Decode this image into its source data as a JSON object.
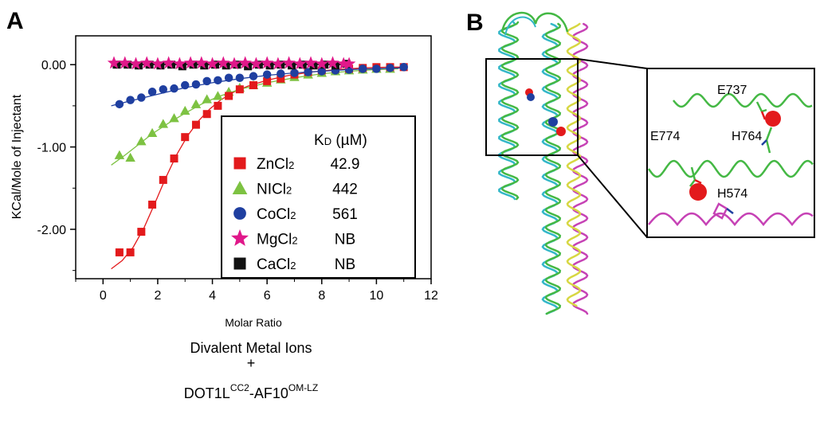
{
  "panel_a": {
    "letter": "A"
  },
  "panel_b": {
    "letter": "B",
    "residues": [
      "E737",
      "E774",
      "H764",
      "H574"
    ],
    "ribbon_colors": {
      "dot1l_a": "#44b844",
      "dot1l_b": "#33b7c8",
      "af10": "#c642b5",
      "helper": "#d7d742"
    },
    "ion_color": "#e31a1c",
    "alt_ion_color": "#1f3fa0"
  },
  "legend": {
    "header_prefix": "K",
    "header_sub": "D",
    "header_suffix": " (µM)",
    "entries": [
      {
        "base": "ZnCl",
        "sub": "2",
        "kd": "42.9",
        "marker": "square",
        "color": "#e31a1c"
      },
      {
        "base": "NICl",
        "sub": "2",
        "kd": "442",
        "marker": "triangle",
        "color": "#7dc242"
      },
      {
        "base": "CoCl",
        "sub": "2",
        "kd": "561",
        "marker": "circle",
        "color": "#1f3fa0"
      },
      {
        "base": "MgCl",
        "sub": "2",
        "kd": "NB",
        "marker": "star",
        "color": "#e0188a"
      },
      {
        "base": "CaCl",
        "sub": "2",
        "kd": "NB",
        "marker": "square",
        "color": "#111111"
      }
    ]
  },
  "caption": {
    "line1": "Divalent Metal Ions",
    "line2": "+",
    "part1": "DOT1L",
    "sup1": "CC2",
    "part2": "-AF10",
    "sup2": "OM-LZ"
  },
  "chart_data": {
    "type": "scatter",
    "xlabel": "Molar Ratio",
    "ylabel": "KCal/Mole of Injectant",
    "xlim": [
      -1,
      12
    ],
    "ylim": [
      -2.6,
      0.35
    ],
    "xticks": [
      0,
      2,
      4,
      6,
      8,
      10,
      12
    ],
    "yticks": [
      0.0,
      -1.0,
      -2.0
    ],
    "ytick_labels": [
      "0.00",
      "-1.00",
      "-2.00"
    ],
    "series": [
      {
        "name": "ZnCl2",
        "marker": "square",
        "color": "#e31a1c",
        "x": [
          0.6,
          1.0,
          1.4,
          1.8,
          2.2,
          2.6,
          3.0,
          3.4,
          3.8,
          4.2,
          4.6,
          5.0,
          5.5,
          6.0,
          6.5,
          7.0,
          7.5,
          8.0,
          8.5,
          9.0,
          9.5,
          10.0,
          10.5,
          11.0
        ],
        "y": [
          -2.28,
          -2.28,
          -2.03,
          -1.7,
          -1.4,
          -1.14,
          -0.88,
          -0.73,
          -0.6,
          -0.5,
          -0.38,
          -0.3,
          -0.25,
          -0.2,
          -0.17,
          -0.12,
          -0.09,
          -0.07,
          -0.05,
          -0.05,
          -0.04,
          -0.03,
          -0.03,
          -0.03
        ],
        "fit_x": [
          0.3,
          0.7,
          1.1,
          1.5,
          1.9,
          2.3,
          2.7,
          3.1,
          3.5,
          3.9,
          4.3,
          4.8,
          5.3,
          6.0,
          6.8,
          7.6,
          8.5,
          9.5,
          10.5,
          11.0
        ],
        "fit_y": [
          -2.48,
          -2.38,
          -2.22,
          -1.98,
          -1.68,
          -1.37,
          -1.09,
          -0.86,
          -0.68,
          -0.54,
          -0.43,
          -0.33,
          -0.26,
          -0.19,
          -0.13,
          -0.09,
          -0.06,
          -0.04,
          -0.03,
          -0.03
        ]
      },
      {
        "name": "NICl2",
        "marker": "triangle",
        "color": "#7dc242",
        "x": [
          0.6,
          1.0,
          1.4,
          1.8,
          2.2,
          2.6,
          3.0,
          3.4,
          3.8,
          4.2,
          4.6,
          5.0,
          5.5,
          6.0,
          6.5,
          7.0,
          7.5,
          8.0,
          8.5,
          9.0,
          9.5,
          10.0,
          10.5
        ],
        "y": [
          -1.1,
          -1.13,
          -0.93,
          -0.83,
          -0.72,
          -0.65,
          -0.56,
          -0.48,
          -0.42,
          -0.38,
          -0.33,
          -0.28,
          -0.25,
          -0.22,
          -0.18,
          -0.15,
          -0.12,
          -0.1,
          -0.08,
          -0.07,
          -0.06,
          -0.05,
          -0.05
        ],
        "fit_x": [
          0.3,
          0.8,
          1.3,
          1.8,
          2.4,
          3.0,
          3.6,
          4.2,
          5.0,
          6.0,
          7.0,
          8.0,
          9.0,
          10.0,
          10.8
        ],
        "fit_y": [
          -1.22,
          -1.1,
          -0.97,
          -0.84,
          -0.71,
          -0.59,
          -0.48,
          -0.39,
          -0.3,
          -0.22,
          -0.16,
          -0.11,
          -0.08,
          -0.06,
          -0.05
        ]
      },
      {
        "name": "CoCl2",
        "marker": "circle",
        "color": "#1f3fa0",
        "x": [
          0.6,
          1.0,
          1.4,
          1.8,
          2.2,
          2.6,
          3.0,
          3.4,
          3.8,
          4.2,
          4.6,
          5.0,
          5.5,
          6.0,
          6.5,
          7.0,
          7.5,
          8.0,
          8.5,
          9.0,
          9.5,
          10.0,
          10.5,
          11.0
        ],
        "y": [
          -0.48,
          -0.43,
          -0.4,
          -0.33,
          -0.3,
          -0.29,
          -0.25,
          -0.24,
          -0.2,
          -0.19,
          -0.16,
          -0.16,
          -0.14,
          -0.12,
          -0.11,
          -0.1,
          -0.09,
          -0.08,
          -0.07,
          -0.06,
          -0.05,
          -0.05,
          -0.04,
          -0.03
        ],
        "fit_x": [
          0.3,
          1.0,
          2.0,
          3.0,
          4.0,
          5.0,
          6.0,
          7.0,
          8.0,
          9.0,
          10.0,
          11.0
        ],
        "fit_y": [
          -0.5,
          -0.44,
          -0.36,
          -0.28,
          -0.22,
          -0.17,
          -0.13,
          -0.1,
          -0.08,
          -0.06,
          -0.05,
          -0.04
        ]
      },
      {
        "name": "MgCl2",
        "marker": "star",
        "color": "#e0188a",
        "x": [
          0.4,
          0.8,
          1.2,
          1.6,
          2.0,
          2.4,
          2.8,
          3.2,
          3.6,
          4.0,
          4.4,
          4.8,
          5.2,
          5.6,
          6.0,
          6.4,
          6.8,
          7.2,
          7.6,
          8.0,
          8.4,
          8.8,
          9.0
        ],
        "y": [
          0.02,
          0.02,
          0.01,
          0.02,
          0.01,
          0.02,
          0.01,
          0.02,
          0.02,
          0.01,
          0.02,
          0.01,
          0.02,
          0.01,
          0.02,
          0.01,
          0.02,
          0.01,
          0.02,
          0.01,
          0.02,
          0.01,
          0.01
        ],
        "fit_x": [
          0.3,
          9.0
        ],
        "fit_y": [
          0.01,
          0.01
        ]
      },
      {
        "name": "CaCl2",
        "marker": "square",
        "color": "#111111",
        "x": [
          0.5,
          0.9,
          1.3,
          1.7,
          2.1,
          2.5,
          2.9,
          3.3,
          3.7,
          4.1,
          4.5,
          4.9,
          5.3,
          5.7,
          6.1,
          6.5,
          6.9,
          7.3,
          7.7,
          8.1,
          8.5,
          8.9
        ],
        "y": [
          0.0,
          0.0,
          -0.01,
          0.0,
          -0.01,
          0.0,
          -0.02,
          0.0,
          -0.01,
          0.0,
          -0.01,
          0.0,
          -0.02,
          0.0,
          -0.01,
          0.0,
          -0.01,
          0.0,
          -0.01,
          0.0,
          -0.01,
          0.01
        ],
        "fit_x": [
          0.3,
          9.0
        ],
        "fit_y": [
          0.0,
          0.0
        ]
      }
    ]
  }
}
